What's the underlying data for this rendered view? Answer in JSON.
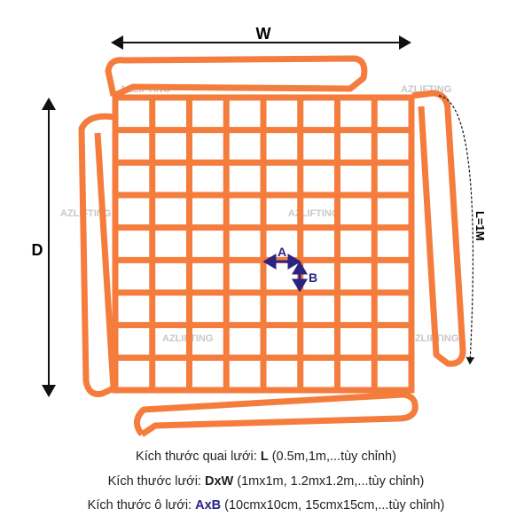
{
  "colors": {
    "net": "#f47c3c",
    "accent": "#2b2382",
    "dim": "#111111",
    "watermark": "#c8c8c8"
  },
  "grid": {
    "columns": 8,
    "rows": 9
  },
  "labels": {
    "width": "W",
    "depth": "D",
    "loop_length": "L=1M",
    "cell_width": "A",
    "cell_height": "B"
  },
  "watermark": "AZLIFTING",
  "captions": [
    {
      "prefix": "Kích thước quai lưới: ",
      "key": "L",
      "suffix": " (0.5m,1m,...tùy chỉnh)"
    },
    {
      "prefix": "Kích thước lưới: ",
      "key": "DxW",
      "suffix": " (1mx1m, 1.2mx1.2m,...tùy chỉnh)"
    },
    {
      "prefix": "Kích thước ô lưới: ",
      "key": "AxB",
      "suffix": " (10cmx10cm, 15cmx15cm,...tùy chỉnh)"
    }
  ]
}
